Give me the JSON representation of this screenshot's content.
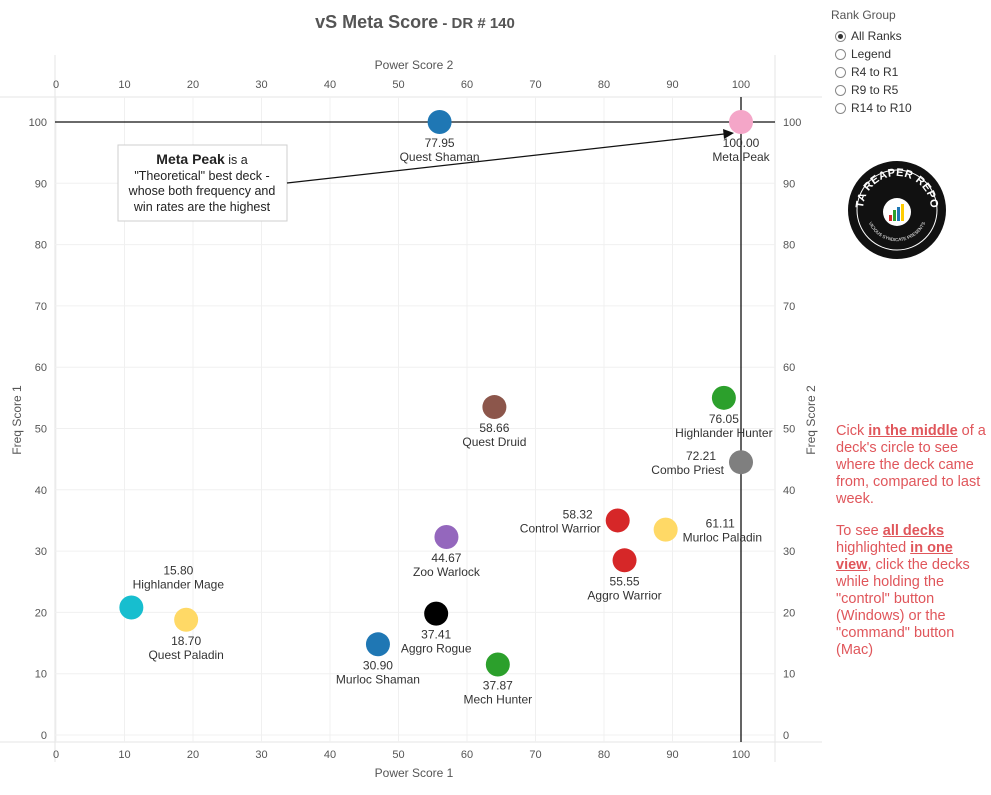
{
  "title": {
    "main": "vS Meta Score",
    "sub": " - DR # 140"
  },
  "rank_group": {
    "title": "Rank Group",
    "options": [
      "All Ranks",
      "Legend",
      "R4 to R1",
      "R9 to R5",
      "R14 to R10"
    ],
    "selected": "All Ranks"
  },
  "logo": {
    "text_top": "DATA REAPER REPORT",
    "text_bottom": "VICIOUS SYNDICATE PRESENTS"
  },
  "annotation": {
    "bold": "Meta Peak",
    "rest_line1": " is a",
    "line2": "\"Theoretical\" best deck -",
    "line3": "whose both frequency and",
    "line4": "win rates are the highest"
  },
  "note": {
    "p1_a": "Cick ",
    "p1_b": "in the middle",
    "p1_c": " of a deck's circle to see where the deck came from, compared to last week.",
    "p2_a": "To see ",
    "p2_b": "all decks ",
    "p2_c": "highlighted ",
    "p2_d": "in one view",
    "p2_e": ", click the decks while holding the \"control\" button (Windows) or the \"command\" button (Mac)"
  },
  "chart_data": {
    "type": "scatter",
    "title": "vS Meta Score - DR # 140",
    "xlabel": "Power Score 1",
    "xlabel_top": "Power Score 2",
    "ylabel": "Freq Score 1",
    "ylabel_right": "Freq Score 2",
    "xlim": [
      0,
      105
    ],
    "ylim": [
      0,
      105
    ],
    "xticks": [
      0,
      10,
      20,
      30,
      40,
      50,
      60,
      70,
      80,
      90,
      100
    ],
    "yticks": [
      0,
      10,
      20,
      30,
      40,
      50,
      60,
      70,
      80,
      90,
      100
    ],
    "grid": true,
    "reference_lines": {
      "x": 100,
      "y": 100
    },
    "points": [
      {
        "name": "Quest Shaman",
        "score": "77.95",
        "x": 56,
        "y": 100,
        "color": "#1f77b4",
        "label_pos": "below"
      },
      {
        "name": "Meta Peak",
        "score": "100.00",
        "x": 100,
        "y": 100,
        "color": "#f4a6c8",
        "label_pos": "below"
      },
      {
        "name": "Quest Druid",
        "score": "58.66",
        "x": 64,
        "y": 53.5,
        "color": "#8c564b",
        "label_pos": "below"
      },
      {
        "name": "Highlander Hunter",
        "score": "76.05",
        "x": 97.5,
        "y": 55,
        "color": "#2ca02c",
        "label_pos": "below"
      },
      {
        "name": "Combo Priest",
        "score": "72.21",
        "x": 100,
        "y": 44.5,
        "color": "#7f7f7f",
        "label_pos": "left"
      },
      {
        "name": "Zoo Warlock",
        "score": "44.67",
        "x": 57,
        "y": 32.3,
        "color": "#9467bd",
        "label_pos": "below"
      },
      {
        "name": "Control Warrior",
        "score": "58.32",
        "x": 82,
        "y": 35,
        "color": "#d62728",
        "label_pos": "left"
      },
      {
        "name": "Murloc Paladin",
        "score": "61.11",
        "x": 89,
        "y": 33.5,
        "color": "#ffd966",
        "label_pos": "right"
      },
      {
        "name": "Aggro Warrior",
        "score": "55.55",
        "x": 83,
        "y": 28.5,
        "color": "#d62728",
        "label_pos": "below"
      },
      {
        "name": "Highlander Mage",
        "score": "15.80",
        "x": 11,
        "y": 20.8,
        "color": "#17becf",
        "label_pos": "above"
      },
      {
        "name": "Quest Paladin",
        "score": "18.70",
        "x": 19,
        "y": 18.8,
        "color": "#ffd966",
        "label_pos": "below"
      },
      {
        "name": "Aggro Rogue",
        "score": "37.41",
        "x": 55.5,
        "y": 19.8,
        "color": "#000000",
        "label_pos": "below"
      },
      {
        "name": "Murloc Shaman",
        "score": "30.90",
        "x": 47,
        "y": 14.8,
        "color": "#1f77b4",
        "label_pos": "below"
      },
      {
        "name": "Mech Hunter",
        "score": "37.87",
        "x": 64.5,
        "y": 11.5,
        "color": "#2ca02c",
        "label_pos": "below"
      }
    ]
  }
}
